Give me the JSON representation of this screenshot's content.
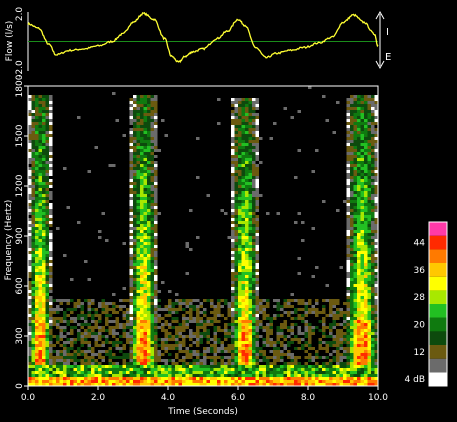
{
  "chart_data": [
    {
      "type": "line",
      "panel": "flow",
      "ylabel": "Flow (l/s)",
      "ylim": [
        -2.0,
        2.0
      ],
      "y_tick_labels": [
        "2.0",
        "-2.0"
      ],
      "y_ticks": [
        2.0,
        -2.0
      ],
      "zero_line": true,
      "colors": {
        "trace": "#ffff33",
        "zero_line": "#1a8c1a",
        "frame": "#ffffff"
      },
      "direction_labels": {
        "up": "I",
        "down": "E"
      },
      "series": [
        {
          "x": [
            0.0,
            0.3,
            0.6,
            0.8,
            1.2,
            1.6,
            2.0,
            2.4,
            2.7,
            3.0,
            3.3,
            3.6,
            3.9,
            4.1,
            4.3,
            4.5,
            4.7,
            5.0,
            5.4,
            5.7,
            6.0,
            6.2,
            6.5,
            6.8,
            7.1,
            7.5,
            7.9,
            8.3,
            8.7,
            9.0,
            9.3,
            9.6,
            9.9,
            10.0
          ],
          "y": [
            1.2,
            0.9,
            -0.2,
            -0.9,
            -0.6,
            -0.5,
            -0.3,
            0.0,
            0.5,
            1.3,
            1.9,
            1.5,
            0.2,
            -1.0,
            -1.4,
            -1.0,
            -0.7,
            -0.5,
            0.2,
            0.7,
            1.5,
            1.1,
            -0.4,
            -1.1,
            -0.8,
            -0.6,
            -0.4,
            -0.1,
            0.3,
            1.3,
            1.8,
            1.3,
            0.5,
            -0.3
          ]
        }
      ]
    },
    {
      "type": "heatmap",
      "panel": "spectrogram",
      "xlabel": "Time (Seconds)",
      "ylabel": "Frequency (Hertz)",
      "xlim": [
        0.0,
        10.0
      ],
      "ylim": [
        0,
        1800
      ],
      "x_ticks": [
        0.0,
        2.0,
        4.0,
        6.0,
        8.0,
        10.0
      ],
      "x_tick_labels": [
        "0.0",
        "2.0",
        "4.0",
        "6.0",
        "8.0",
        "10.0"
      ],
      "y_ticks": [
        0,
        300,
        600,
        900,
        1200,
        1500,
        1800
      ],
      "y_tick_labels": [
        "0",
        "300",
        "600",
        "900",
        "1200",
        "1500",
        "1800"
      ],
      "bursts": [
        {
          "start": 0.1,
          "end": 0.6,
          "top": 1750
        },
        {
          "start": 3.0,
          "end": 3.6,
          "top": 1750
        },
        {
          "start": 5.9,
          "end": 6.5,
          "top": 1720
        },
        {
          "start": 9.2,
          "end": 9.9,
          "top": 1740
        }
      ],
      "colorbar": {
        "levels": [
          4,
          8,
          12,
          16,
          20,
          24,
          28,
          32,
          36,
          40,
          44,
          48
        ],
        "colors": [
          "#ffffff",
          "#6b6b6b",
          "#6b5a10",
          "#0d4a0d",
          "#0f7a0f",
          "#22c022",
          "#a8e800",
          "#ffff00",
          "#ffc800",
          "#ff7a00",
          "#ff2a00",
          "#ff3aa8"
        ],
        "labels": [
          "4 dB",
          "12",
          "20",
          "28",
          "36",
          "44"
        ],
        "label_values": [
          4,
          12,
          20,
          28,
          36,
          44
        ]
      }
    }
  ]
}
